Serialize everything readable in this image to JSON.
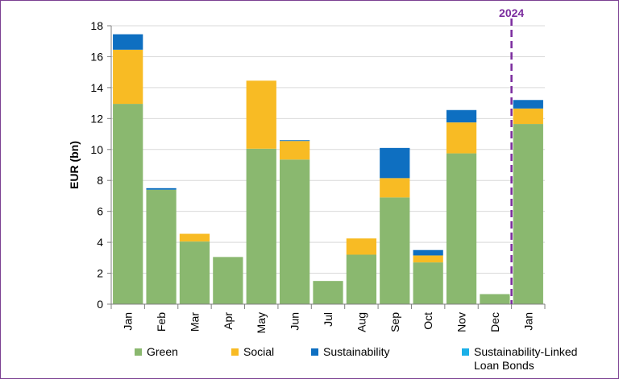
{
  "chart_data": {
    "type": "stacked_bar",
    "y_label": "EUR (bn)",
    "annotation": "2024",
    "categories": [
      "Jan",
      "Feb",
      "Mar",
      "Apr",
      "May",
      "Jun",
      "Jul",
      "Aug",
      "Sep",
      "Oct",
      "Nov",
      "Dec",
      "Jan"
    ],
    "series": [
      {
        "name": "Green",
        "color": "#8ab86f",
        "values": [
          12.95,
          7.4,
          4.05,
          3.05,
          10.05,
          9.35,
          1.5,
          3.2,
          6.9,
          2.7,
          9.75,
          0.65,
          11.65
        ]
      },
      {
        "name": "Social",
        "color": "#f8bb24",
        "values": [
          3.5,
          0,
          0.5,
          0,
          4.4,
          1.2,
          0,
          1.05,
          1.25,
          0.45,
          2.0,
          0,
          1.0
        ]
      },
      {
        "name": "Sustainability",
        "color": "#0e6fc1",
        "values": [
          1.0,
          0.1,
          0,
          0,
          0,
          0.05,
          0,
          0,
          1.95,
          0.35,
          0.8,
          0,
          0.55
        ]
      },
      {
        "name": "Sustainability-Linked Loan Bonds",
        "color": "#1bb0e8",
        "values": [
          0,
          0,
          0,
          0,
          0,
          0,
          0,
          0,
          0,
          0,
          0,
          0,
          0
        ]
      }
    ],
    "ylim": [
      0,
      18
    ],
    "yticks": [
      0,
      2,
      4,
      6,
      8,
      10,
      12,
      14,
      16,
      18
    ],
    "grid": true,
    "divider_color": "#7b2c9e"
  }
}
